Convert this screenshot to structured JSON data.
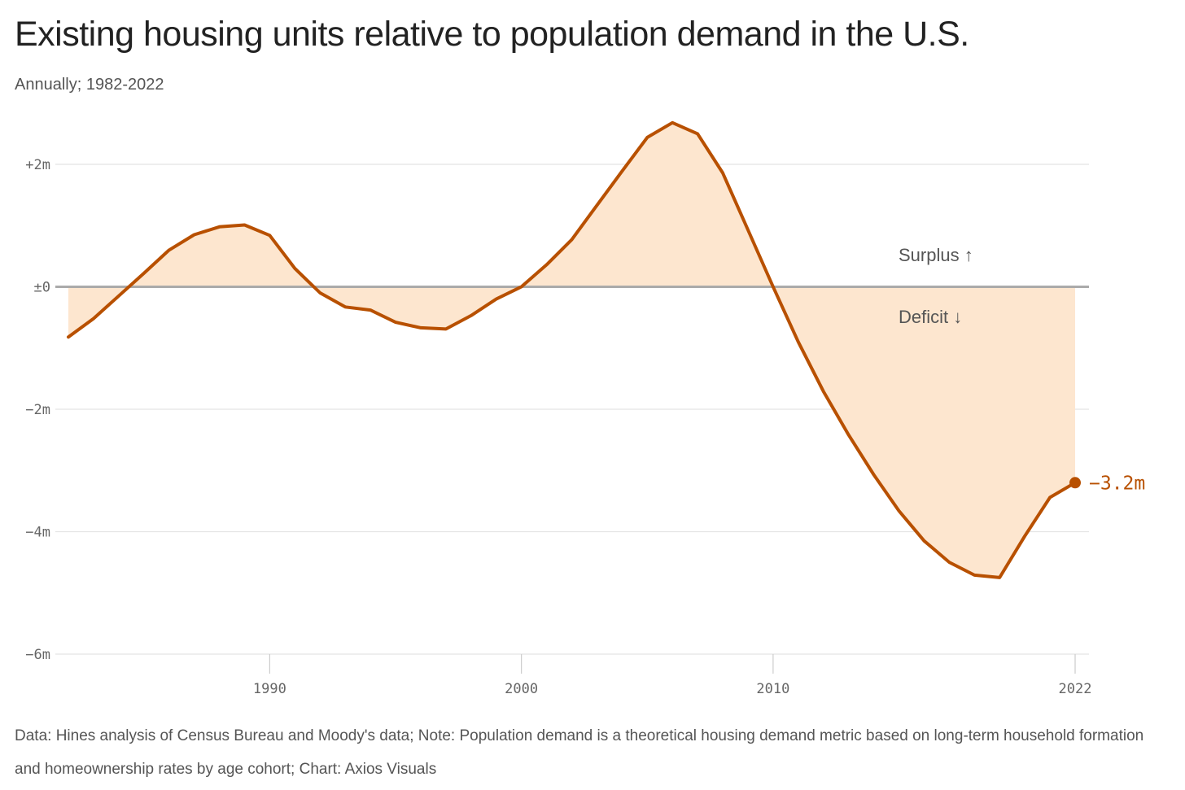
{
  "title": "Existing housing units relative to population demand in the U.S.",
  "subtitle": "Annually; 1982-2022",
  "footer": "Data: Hines analysis of Census Bureau and Moody's data; Note: Population demand is a theoretical housing demand metric based on long-term household formation and homeownership rates by age cohort; Chart: Axios Visuals",
  "colors": {
    "line": "#b85000",
    "fill": "#fde6cf",
    "zero_line": "#aaaaaa",
    "grid": "#e4e4e4"
  },
  "chart_data": {
    "type": "area",
    "x": [
      1982,
      1983,
      1984,
      1985,
      1986,
      1987,
      1988,
      1989,
      1990,
      1991,
      1992,
      1993,
      1994,
      1995,
      1996,
      1997,
      1998,
      1999,
      2000,
      2001,
      2002,
      2003,
      2004,
      2005,
      2006,
      2007,
      2008,
      2009,
      2010,
      2011,
      2012,
      2013,
      2014,
      2015,
      2016,
      2017,
      2018,
      2019,
      2020,
      2021,
      2022
    ],
    "values": [
      -0.82,
      -0.52,
      -0.15,
      0.22,
      0.6,
      0.85,
      0.98,
      1.01,
      0.84,
      0.3,
      -0.1,
      -0.33,
      -0.38,
      -0.58,
      -0.67,
      -0.69,
      -0.47,
      -0.2,
      0.0,
      0.36,
      0.77,
      1.33,
      1.89,
      2.44,
      2.68,
      2.5,
      1.86,
      0.93,
      0.0,
      -0.9,
      -1.71,
      -2.42,
      -3.07,
      -3.66,
      -4.15,
      -4.5,
      -4.71,
      -4.75,
      -4.07,
      -3.44,
      -3.2
    ],
    "xlabel": "",
    "ylabel": "",
    "ylim": [
      -6,
      2.7
    ],
    "xlim": [
      1982,
      2022
    ],
    "y_ticks": [
      2,
      0,
      -2,
      -4,
      -6
    ],
    "y_tick_labels": [
      "+2m",
      "±0",
      "−2m",
      "−4m",
      "−6m"
    ],
    "x_ticks": [
      1990,
      2000,
      2010,
      2022
    ],
    "x_tick_labels": [
      "1990",
      "2000",
      "2010",
      "2022"
    ],
    "annotations": {
      "surplus": "Surplus ↑",
      "deficit": "Deficit ↓"
    },
    "end_label": "−3.2m",
    "grid": true
  }
}
